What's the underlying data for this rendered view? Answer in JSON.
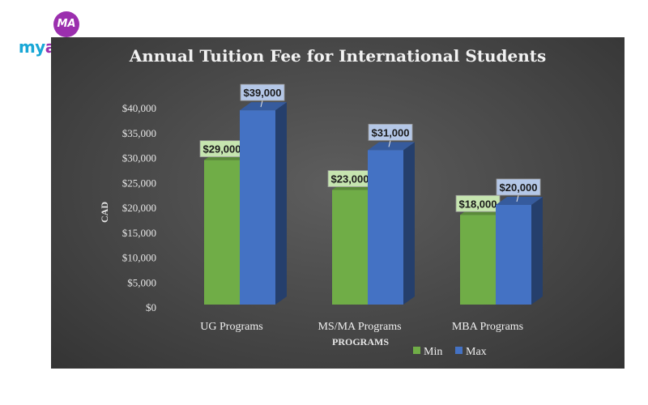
{
  "logo": {
    "badge": "MA",
    "wordmark_a": "my",
    "wordmark_b": "arman",
    "colors": {
      "my": "#19a7d6",
      "arman": "#9b2fae",
      "badge": "#9b2fae"
    }
  },
  "chart_data": {
    "type": "bar",
    "style": "3d-column",
    "title": "Annual Tuition Fee for International Students",
    "xlabel": "PROGRAMS",
    "ylabel": "CAD",
    "categories": [
      "UG Programs",
      "MS/MA Programs",
      "MBA Programs"
    ],
    "series": [
      {
        "name": "Min",
        "values": [
          29000,
          23000,
          18000
        ],
        "labels": [
          "$29,000",
          "$23,000",
          "$18,000"
        ],
        "color": "#70ad47",
        "label_bg": "#c6e5b0"
      },
      {
        "name": "Max",
        "values": [
          39000,
          31000,
          20000
        ],
        "labels": [
          "$39,000",
          "$31,000",
          "$20,000"
        ],
        "color": "#4472c4",
        "label_bg": "#b4c7e7"
      }
    ],
    "ylim": [
      0,
      40000
    ],
    "yticks": [
      0,
      5000,
      10000,
      15000,
      20000,
      25000,
      30000,
      35000,
      40000
    ],
    "ytick_labels": [
      "$0",
      "$5,000",
      "$10,000",
      "$15,000",
      "$20,000",
      "$25,000",
      "$30,000",
      "$35,000",
      "$40,000"
    ],
    "grid": false,
    "legend_position": "bottom-right",
    "background": "#474747"
  }
}
